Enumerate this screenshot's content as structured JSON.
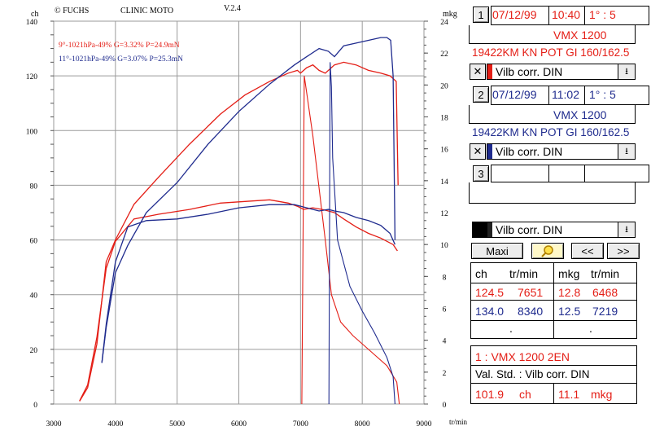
{
  "chart_data": {
    "type": "line",
    "header": {
      "brand": "© FUCHS",
      "title": "CLINIC MOTO",
      "version": "V.2.4"
    },
    "xlabel": "tr/min",
    "ylabel_left": "ch",
    "ylabel_right": "mkg",
    "xlim": [
      3000,
      9000
    ],
    "ylim_left": [
      0,
      140
    ],
    "ylim_right": [
      0,
      24
    ],
    "xticks": [
      "3000",
      "4000",
      "5000",
      "6000",
      "7000",
      "8000",
      "9000"
    ],
    "yticks_left": [
      "0",
      "20",
      "40",
      "60",
      "80",
      "100",
      "120",
      "140"
    ],
    "yticks_right": [
      "0",
      "2",
      "4",
      "6",
      "8",
      "10",
      "12",
      "14",
      "16",
      "18",
      "20",
      "22",
      "24"
    ],
    "grid": true,
    "legend_position": "top-left",
    "series": [
      {
        "name": "9°-1021hPa-49% G=3.32% P=24.9mN",
        "color": "#e41e16",
        "power_x": [
          3420,
          3550,
          3700,
          3850,
          4000,
          4300,
          4700,
          5200,
          5700,
          6100,
          6500,
          6800,
          6950,
          7000,
          7100,
          7200,
          7300,
          7400,
          7550,
          7700,
          7900,
          8100,
          8300,
          8450,
          8550,
          8580
        ],
        "power_y": [
          1,
          6,
          22,
          52,
          60,
          73,
          83,
          95,
          106,
          113,
          118,
          121,
          122,
          121,
          123,
          124,
          122,
          121,
          124,
          125,
          124,
          122,
          121,
          120,
          118,
          80
        ],
        "torque_x": [
          3420,
          3550,
          3700,
          3850,
          4000,
          4300,
          4700,
          5200,
          5700,
          6100,
          6500,
          6800,
          6950,
          7050,
          7200,
          7350,
          7450,
          7550,
          7700,
          7900,
          8100,
          8300,
          8500,
          8570
        ],
        "torque_y": [
          0.2,
          1.2,
          4.2,
          8.5,
          10.2,
          11.6,
          11.9,
          12.2,
          12.6,
          12.7,
          12.8,
          12.6,
          12.4,
          12.2,
          12.3,
          12.2,
          12.1,
          12.0,
          11.6,
          11.1,
          10.7,
          10.4,
          10.0,
          9.6
        ],
        "drop_x": [
          7020,
          7060,
          7200,
          7400,
          7500,
          7650,
          7850,
          8100,
          8400,
          8560,
          8600
        ],
        "drop_y": [
          0,
          120,
          98,
          60,
          40,
          30,
          25,
          20,
          14,
          8,
          0
        ]
      },
      {
        "name": "11°-1021hPa-49% G=3.07% P=25.3mN",
        "color": "#1f2b8e",
        "power_x": [
          3780,
          3850,
          4000,
          4200,
          4500,
          5000,
          5500,
          6000,
          6500,
          6900,
          7100,
          7300,
          7450,
          7550,
          7700,
          7900,
          8100,
          8300,
          8400,
          8460,
          8500,
          8530
        ],
        "power_y": [
          15,
          28,
          48,
          58,
          70,
          81,
          95,
          107,
          117,
          124,
          127,
          130,
          129,
          127,
          131,
          132,
          133,
          134,
          134,
          133,
          120,
          60
        ],
        "torque_x": [
          3780,
          3850,
          4000,
          4200,
          4500,
          5000,
          5500,
          6000,
          6500,
          6900,
          7100,
          7300,
          7450,
          7550,
          7700,
          7900,
          8100,
          8300,
          8450,
          8530
        ],
        "torque_y": [
          2.6,
          5.0,
          8.9,
          11.1,
          11.5,
          11.6,
          11.9,
          12.3,
          12.5,
          12.5,
          12.3,
          12.1,
          12.2,
          12.1,
          12.0,
          11.7,
          11.5,
          11.2,
          10.7,
          10.0
        ],
        "drop_x": [
          7460,
          7480,
          7500,
          7520,
          7600,
          7800,
          8000,
          8200,
          8400,
          8500,
          8530
        ],
        "drop_y": [
          0,
          125,
          116,
          90,
          60,
          43,
          34,
          26,
          17,
          10,
          0
        ]
      }
    ]
  },
  "panel": {
    "run1": {
      "num": "1",
      "date": "07/12/99",
      "time": "10:40",
      "ratio": "1° : 5",
      "model": "VMX 1200",
      "desc": "19422KM KN POT GI 160/162.5",
      "correction": "Vilb corr. DIN"
    },
    "run2": {
      "num": "2",
      "date": "07/12/99",
      "time": "11:02",
      "ratio": "1° : 5",
      "model": "VMX 1200",
      "desc": "19422KM KN POT GI 160/162.5",
      "correction": "Vilb corr. DIN"
    },
    "run3": {
      "num": "3",
      "correction": "Vilb corr. DIN"
    },
    "buttons": {
      "maxi": "Maxi",
      "prev": "<<",
      "next": ">>"
    },
    "table": {
      "headers": [
        "ch",
        "tr/min",
        "mkg",
        "tr/min"
      ],
      "rows": [
        {
          "ch": "124.5",
          "rpm1": "7651",
          "mkg": "12.8",
          "rpm2": "6468"
        },
        {
          "ch": "134.0",
          "rpm1": "8340",
          "mkg": "12.5",
          "rpm2": "7219"
        },
        {
          "dot1": ".",
          "dot2": "."
        }
      ]
    },
    "summary": {
      "title": "1 : VMX 1200  2EN",
      "std": "Val. Std. : Vilb corr. DIN",
      "ch_value": "101.9",
      "ch_unit": "ch",
      "mkg_value": "11.1",
      "mkg_unit": "mkg"
    }
  }
}
